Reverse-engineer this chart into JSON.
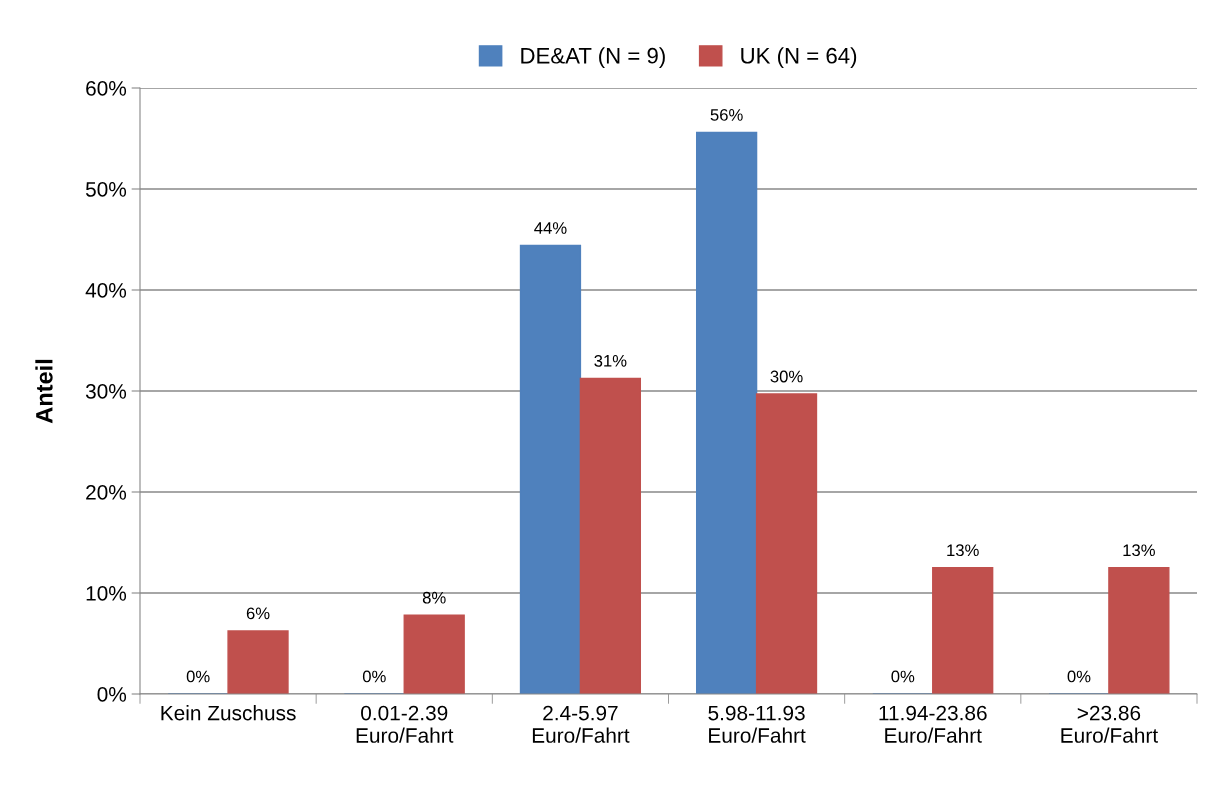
{
  "chart_data": {
    "type": "bar",
    "ylabel": "Anteil",
    "categories": [
      "Kein Zuschuss",
      "0.01-2.39\nEuro/Fahrt",
      "2.4-5.97\nEuro/Fahrt",
      "5.98-11.93\nEuro/Fahrt",
      "11.94-23.86\nEuro/Fahrt",
      ">23.86\nEuro/Fahrt"
    ],
    "series": [
      {
        "name": "DE&AT (N = 9)",
        "color": "#4f81bd",
        "values": [
          0,
          0,
          44.4,
          55.6,
          0,
          0
        ],
        "value_labels": [
          "0%",
          "0%",
          "44%",
          "56%",
          "0%",
          "0%"
        ]
      },
      {
        "name": "UK (N = 64)",
        "color": "#c0504d",
        "values": [
          6.25,
          7.8,
          31.25,
          29.7,
          12.5,
          12.5
        ],
        "value_labels": [
          "6%",
          "8%",
          "31%",
          "30%",
          "13%",
          "13%"
        ]
      }
    ],
    "ylim": [
      0,
      60
    ],
    "yticks": [
      {
        "value": 0,
        "label": "0%"
      },
      {
        "value": 10,
        "label": "10%"
      },
      {
        "value": 20,
        "label": "20%"
      },
      {
        "value": 30,
        "label": "30%"
      },
      {
        "value": 40,
        "label": "40%"
      },
      {
        "value": 50,
        "label": "50%"
      },
      {
        "value": 60,
        "label": "60%"
      }
    ],
    "grid": "y",
    "legend": "top"
  }
}
